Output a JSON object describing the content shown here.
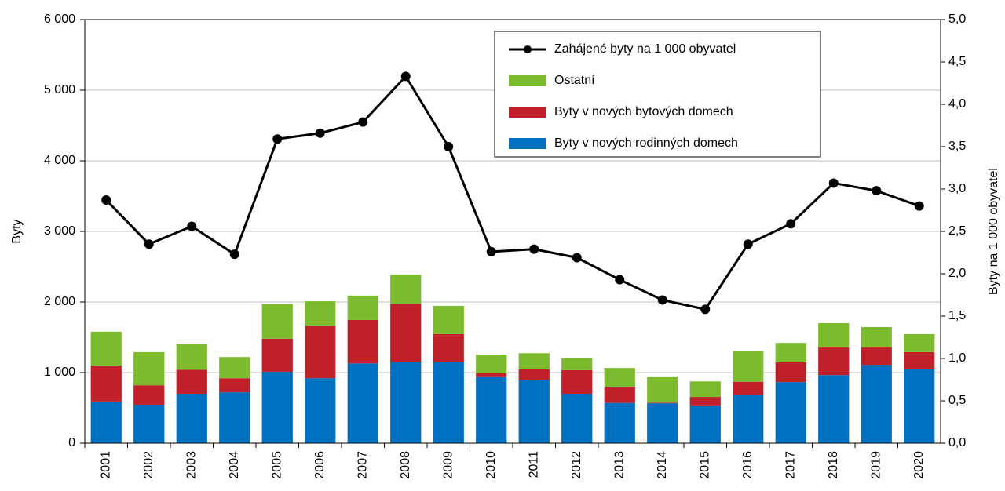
{
  "chart_data": {
    "type": "bar",
    "stacked": true,
    "categories": [
      "2001",
      "2002",
      "2003",
      "2004",
      "2005",
      "2006",
      "2007",
      "2008",
      "2009",
      "2010",
      "2011",
      "2012",
      "2013",
      "2014",
      "2015",
      "2016",
      "2017",
      "2018",
      "2019",
      "2020"
    ],
    "series": [
      {
        "name": "Byty v nových rodinných domech",
        "color": "#0070c0",
        "type": "bar",
        "values": [
          590,
          545,
          700,
          720,
          1010,
          920,
          1130,
          1145,
          1145,
          935,
          900,
          700,
          570,
          565,
          535,
          680,
          865,
          965,
          1110,
          1045
        ]
      },
      {
        "name": "Byty v nových bytových domech",
        "color": "#c0202a",
        "type": "bar",
        "values": [
          510,
          275,
          340,
          200,
          470,
          745,
          615,
          830,
          400,
          55,
          145,
          335,
          230,
          10,
          120,
          190,
          280,
          390,
          245,
          245
        ]
      },
      {
        "name": "Ostatní",
        "color": "#7cbb2e",
        "type": "bar",
        "values": [
          480,
          470,
          360,
          300,
          490,
          345,
          345,
          415,
          400,
          265,
          230,
          175,
          265,
          360,
          220,
          430,
          275,
          345,
          290,
          255
        ]
      },
      {
        "name": "Zahájené byty na 1 000 obyvatel",
        "color": "#000000",
        "type": "line",
        "axis": "y2",
        "values": [
          2.87,
          2.35,
          2.56,
          2.23,
          3.59,
          3.66,
          3.79,
          4.33,
          3.5,
          2.26,
          2.29,
          2.19,
          1.93,
          1.69,
          1.58,
          2.35,
          2.59,
          3.07,
          2.98,
          2.8
        ]
      }
    ],
    "ylabel": "Byty",
    "y2label": "Byty na 1 000 obyvatel",
    "ylim": [
      0,
      6000
    ],
    "yticks": [
      0,
      {
        "value": 1000,
        "label": "1 000"
      },
      {
        "value": 2000,
        "label": "2 000"
      },
      {
        "value": 3000,
        "label": "3 000"
      },
      {
        "value": 4000,
        "label": "4 000"
      },
      {
        "value": 5000,
        "label": "5 000"
      },
      {
        "value": 6000,
        "label": "6 000"
      }
    ],
    "y2lim": [
      0,
      5
    ],
    "y2ticks": [
      {
        "value": 0,
        "label": "0,0"
      },
      {
        "value": 0.5,
        "label": "0,5"
      },
      {
        "value": 1,
        "label": "1,0"
      },
      {
        "value": 1.5,
        "label": "1,5"
      },
      {
        "value": 2,
        "label": "2,0"
      },
      {
        "value": 2.5,
        "label": "2,5"
      },
      {
        "value": 3,
        "label": "3,0"
      },
      {
        "value": 3.5,
        "label": "3,5"
      },
      {
        "value": 4,
        "label": "4,0"
      },
      {
        "value": 4.5,
        "label": "4,5"
      },
      {
        "value": 5,
        "label": "5,0"
      }
    ],
    "grid": true,
    "legend": "top-right"
  }
}
